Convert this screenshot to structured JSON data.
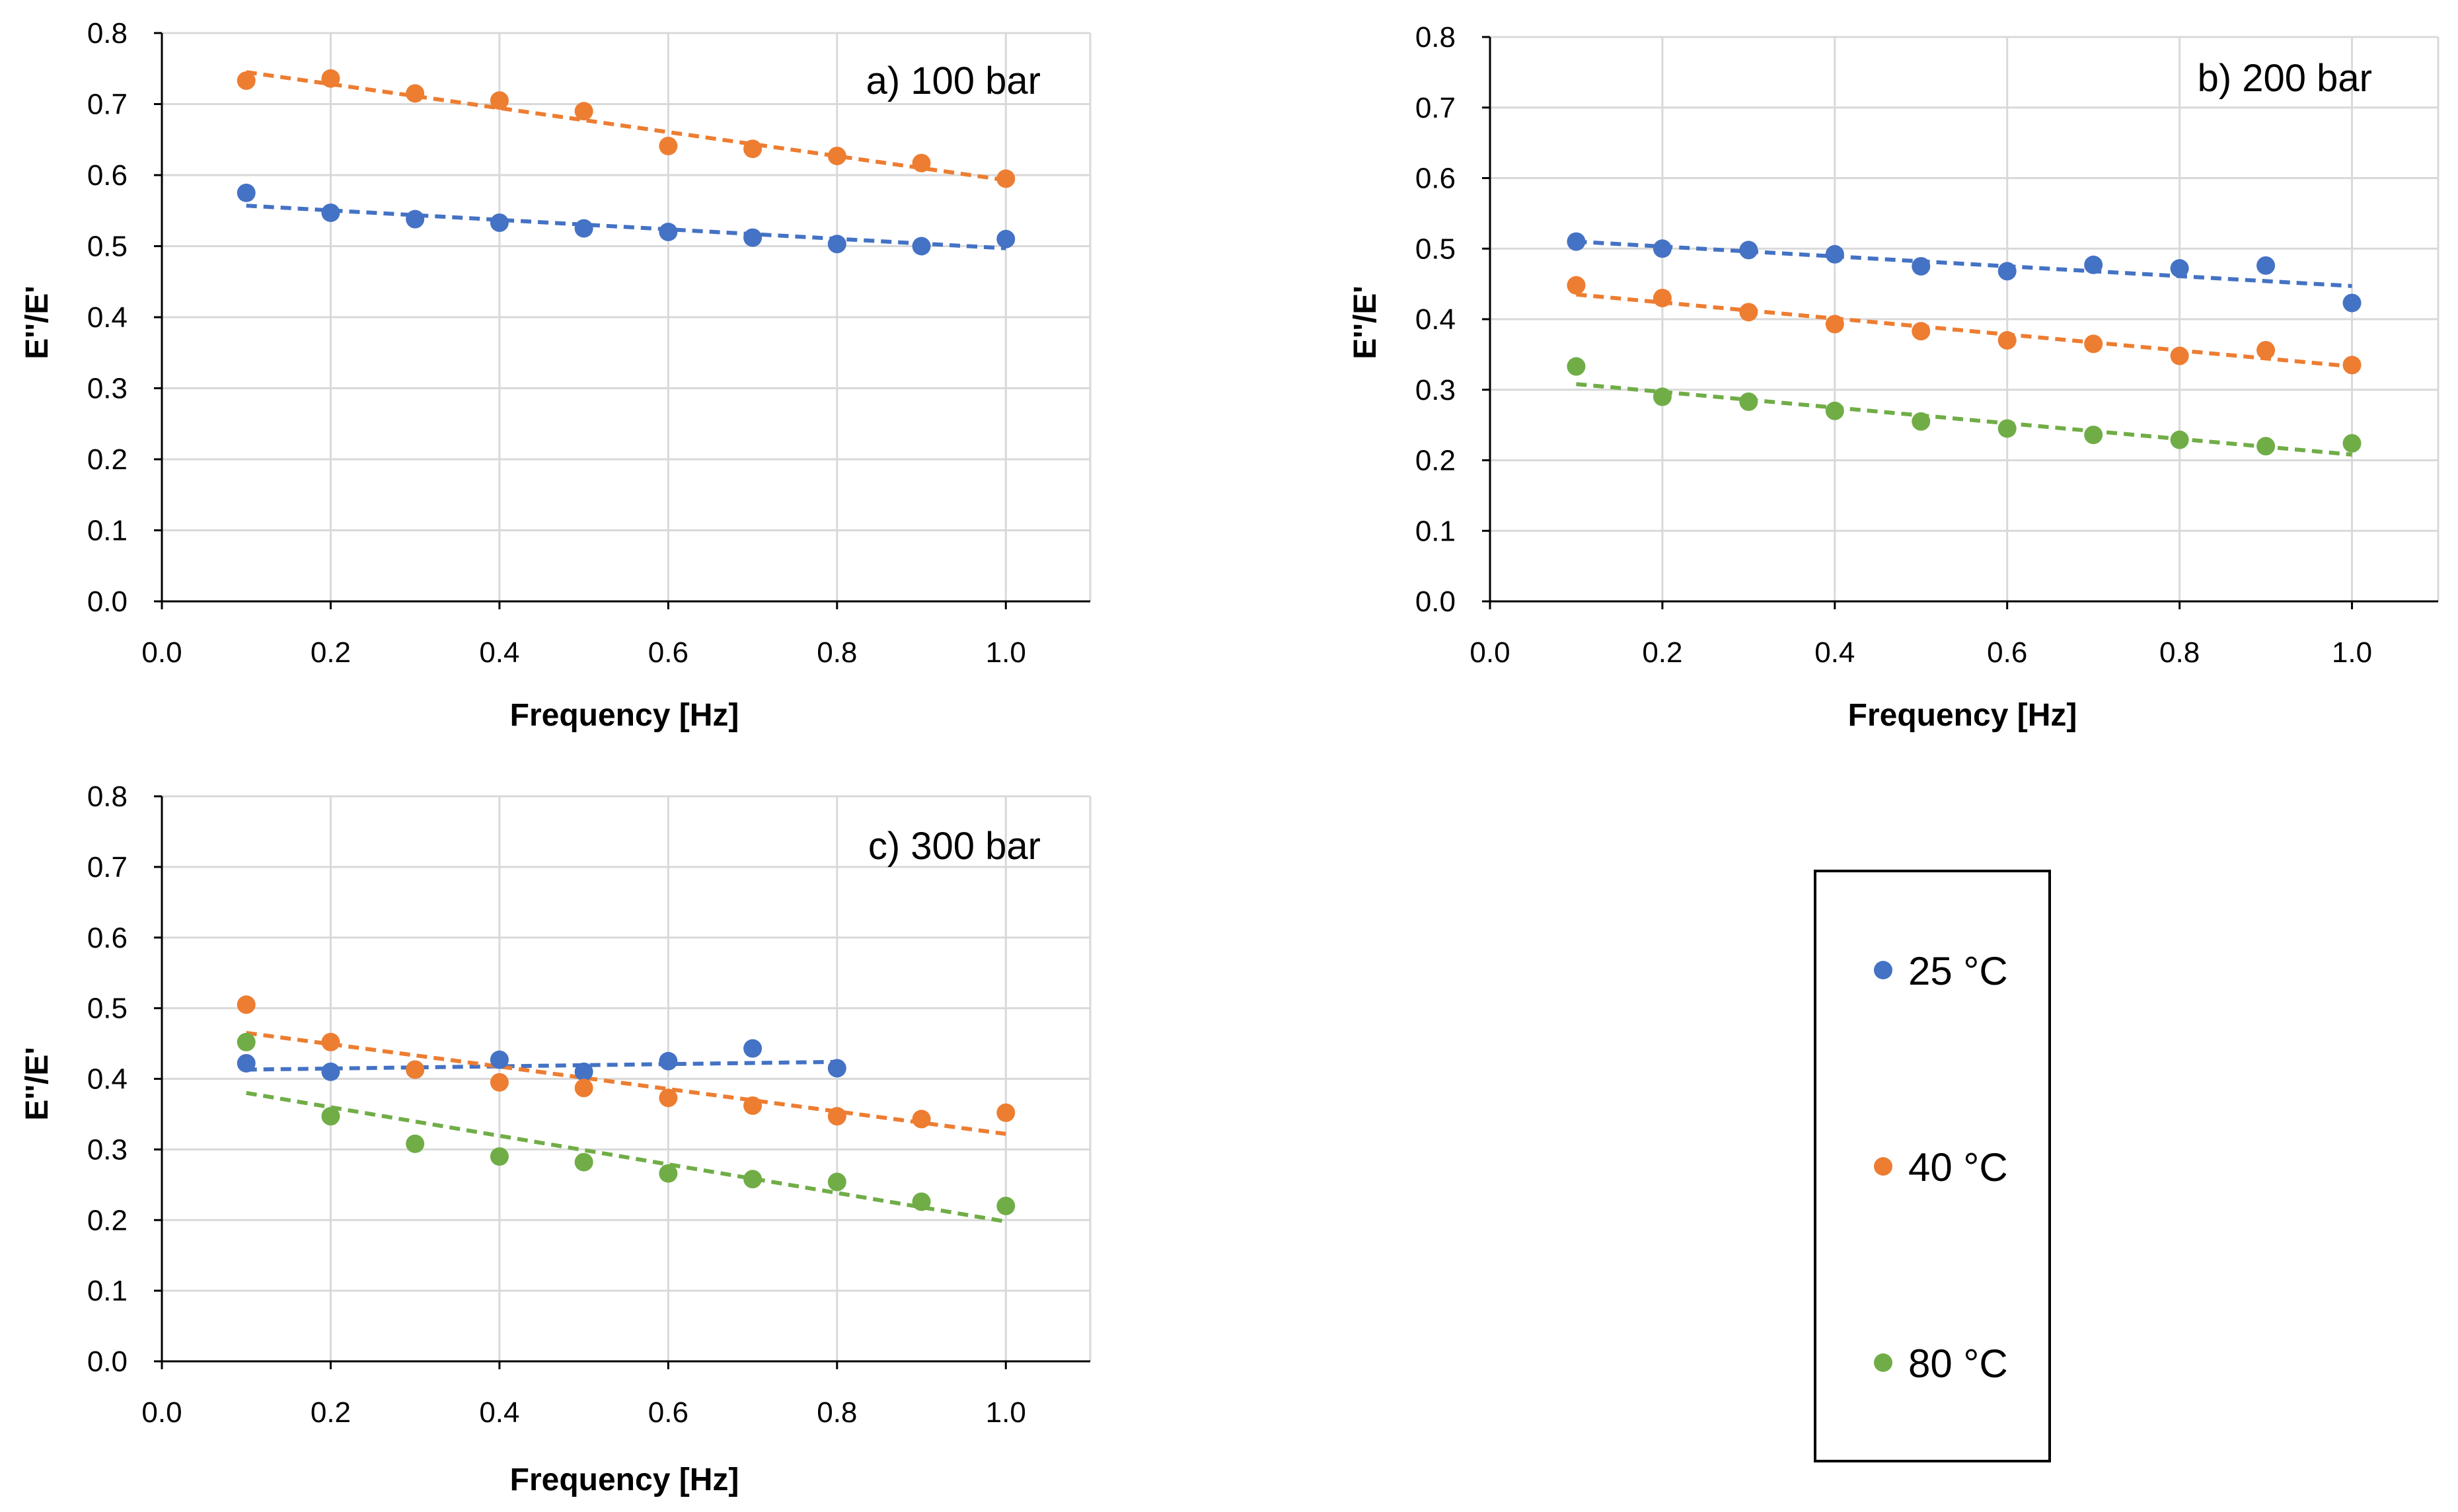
{
  "colors": {
    "c25": "#4472C4",
    "c40": "#ED7D31",
    "c80": "#70AD47",
    "grid": "#D9D9D9",
    "axis": "#000000"
  },
  "legend": {
    "items": [
      {
        "label": "25 °C",
        "color": "#4472C4"
      },
      {
        "label": "40 °C",
        "color": "#ED7D31"
      },
      {
        "label": "80 °C",
        "color": "#70AD47"
      }
    ]
  },
  "chart_data": [
    {
      "type": "scatter",
      "title": "a) 100 bar",
      "xlabel": "Frequency [Hz]",
      "ylabel": "E''/E'",
      "xlim": [
        0,
        1.1
      ],
      "ylim": [
        0,
        0.8
      ],
      "xticks": [
        "0.0",
        "0.2",
        "0.4",
        "0.6",
        "0.8",
        "1.0"
      ],
      "yticks": [
        "0.0",
        "0.1",
        "0.2",
        "0.3",
        "0.4",
        "0.5",
        "0.6",
        "0.7",
        "0.8"
      ],
      "grid": true,
      "series": [
        {
          "name": "25 °C",
          "color": "#4472C4",
          "x": [
            0.1,
            0.2,
            0.3,
            0.4,
            0.5,
            0.6,
            0.7,
            0.8,
            0.9,
            1.0
          ],
          "y": [
            0.575,
            0.547,
            0.538,
            0.533,
            0.525,
            0.52,
            0.512,
            0.503,
            0.5,
            0.51
          ],
          "trend": [
            [
              0.1,
              0.557
            ],
            [
              1.0,
              0.497
            ]
          ]
        },
        {
          "name": "40 °C",
          "color": "#ED7D31",
          "x": [
            0.1,
            0.2,
            0.3,
            0.4,
            0.5,
            0.6,
            0.7,
            0.8,
            0.9,
            1.0
          ],
          "y": [
            0.733,
            0.736,
            0.715,
            0.705,
            0.69,
            0.641,
            0.637,
            0.627,
            0.617,
            0.595
          ],
          "trend": [
            [
              0.1,
              0.745
            ],
            [
              1.0,
              0.593
            ]
          ]
        }
      ]
    },
    {
      "type": "scatter",
      "title": "b) 200 bar",
      "xlabel": "Frequency [Hz]",
      "ylabel": "E''/E'",
      "xlim": [
        0,
        1.1
      ],
      "ylim": [
        0,
        0.8
      ],
      "xticks": [
        "0.0",
        "0.2",
        "0.4",
        "0.6",
        "0.8",
        "1.0"
      ],
      "yticks": [
        "0.0",
        "0.1",
        "0.2",
        "0.3",
        "0.4",
        "0.5",
        "0.6",
        "0.7",
        "0.8"
      ],
      "grid": true,
      "series": [
        {
          "name": "25 °C",
          "color": "#4472C4",
          "x": [
            0.1,
            0.2,
            0.3,
            0.4,
            0.5,
            0.6,
            0.7,
            0.8,
            0.9,
            1.0
          ],
          "y": [
            0.51,
            0.5,
            0.498,
            0.492,
            0.475,
            0.468,
            0.477,
            0.472,
            0.476,
            0.423
          ],
          "trend": [
            [
              0.1,
              0.51
            ],
            [
              1.0,
              0.447
            ]
          ]
        },
        {
          "name": "40 °C",
          "color": "#ED7D31",
          "x": [
            0.1,
            0.2,
            0.3,
            0.4,
            0.5,
            0.6,
            0.7,
            0.8,
            0.9,
            1.0
          ],
          "y": [
            0.448,
            0.43,
            0.41,
            0.393,
            0.383,
            0.37,
            0.365,
            0.348,
            0.356,
            0.335
          ],
          "trend": [
            [
              0.1,
              0.435
            ],
            [
              1.0,
              0.333
            ]
          ]
        },
        {
          "name": "80 °C",
          "color": "#70AD47",
          "x": [
            0.1,
            0.2,
            0.3,
            0.4,
            0.5,
            0.6,
            0.7,
            0.8,
            0.9,
            1.0
          ],
          "y": [
            0.333,
            0.29,
            0.283,
            0.27,
            0.255,
            0.245,
            0.236,
            0.229,
            0.22,
            0.224
          ],
          "trend": [
            [
              0.1,
              0.308
            ],
            [
              1.0,
              0.208
            ]
          ]
        }
      ]
    },
    {
      "type": "scatter",
      "title": "c) 300 bar",
      "xlabel": "Frequency [Hz]",
      "ylabel": "E''/E'",
      "xlim": [
        0,
        1.1
      ],
      "ylim": [
        0,
        0.8
      ],
      "xticks": [
        "0.0",
        "0.2",
        "0.4",
        "0.6",
        "0.8",
        "1.0"
      ],
      "yticks": [
        "0.0",
        "0.1",
        "0.2",
        "0.3",
        "0.4",
        "0.5",
        "0.6",
        "0.7",
        "0.8"
      ],
      "grid": true,
      "series": [
        {
          "name": "25 °C",
          "color": "#4472C4",
          "x": [
            0.1,
            0.2,
            0.3,
            0.4,
            0.5,
            0.6,
            0.7,
            0.8
          ],
          "y": [
            0.422,
            0.41,
            0.413,
            0.427,
            0.41,
            0.425,
            0.443,
            0.415
          ],
          "trend": [
            [
              0.1,
              0.413
            ],
            [
              0.8,
              0.424
            ]
          ]
        },
        {
          "name": "40 °C",
          "color": "#ED7D31",
          "x": [
            0.1,
            0.2,
            0.3,
            0.4,
            0.5,
            0.6,
            0.7,
            0.8,
            0.9,
            1.0
          ],
          "y": [
            0.505,
            0.452,
            0.413,
            0.395,
            0.387,
            0.373,
            0.362,
            0.347,
            0.343,
            0.352
          ],
          "trend": [
            [
              0.1,
              0.465
            ],
            [
              1.0,
              0.322
            ]
          ]
        },
        {
          "name": "80 °C",
          "color": "#70AD47",
          "x": [
            0.1,
            0.2,
            0.3,
            0.4,
            0.5,
            0.6,
            0.7,
            0.8,
            0.9,
            1.0
          ],
          "y": [
            0.452,
            0.347,
            0.308,
            0.29,
            0.282,
            0.266,
            0.258,
            0.254,
            0.226,
            0.22
          ],
          "trend": [
            [
              0.1,
              0.38
            ],
            [
              1.0,
              0.198
            ]
          ]
        }
      ]
    }
  ]
}
